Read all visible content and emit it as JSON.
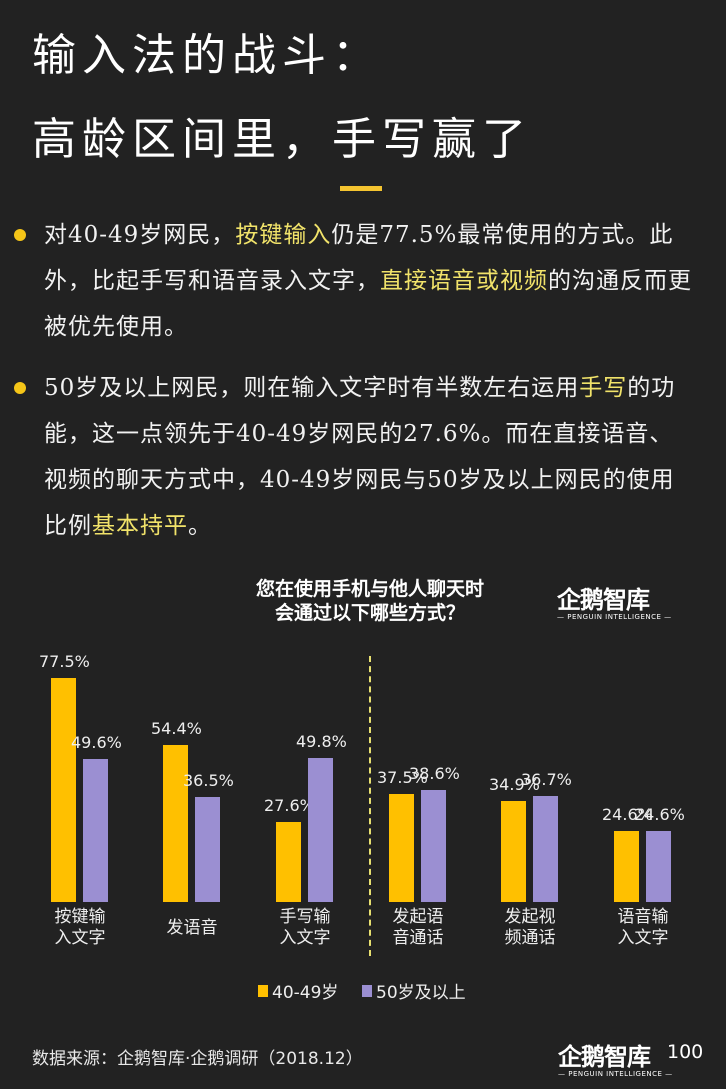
{
  "title": {
    "line1": "输入法的战斗：",
    "line2": "高龄区间里，手写赢了"
  },
  "bullets": [
    {
      "parts": [
        {
          "text": "对40-49岁网民，",
          "highlight": false
        },
        {
          "text": "按键输入",
          "highlight": true
        },
        {
          "text": "仍是77.5%最常使用的方式。此外，比起手写和语音录入文字，",
          "highlight": false
        },
        {
          "text": "直接语音或视频",
          "highlight": true
        },
        {
          "text": "的沟通反而更被优先使用。",
          "highlight": false
        }
      ]
    },
    {
      "parts": [
        {
          "text": "50岁及以上网民，则在输入文字时有半数左右运用",
          "highlight": false
        },
        {
          "text": "手写",
          "highlight": true
        },
        {
          "text": "的功能，这一点领先于40-49岁网民的27.6%。而在直接语音、视频的聊天方式中，40-49岁网民与50岁及以上网民的使用比例",
          "highlight": false
        },
        {
          "text": "基本持平",
          "highlight": true
        },
        {
          "text": "。",
          "highlight": false
        }
      ]
    }
  ],
  "chart_title": {
    "line1": "您在使用手机与他人聊天时",
    "line2": "会通过以下哪些方式？"
  },
  "logo": {
    "name": "企鹅智库",
    "sub": "— PENGUIN INTELLIGENCE —"
  },
  "colors": {
    "series1": "#ffc000",
    "series2": "#9b8fd2",
    "accent": "#f4c430",
    "highlight_text": "#f1e36a",
    "background": "#222222"
  },
  "chart_data": {
    "type": "bar",
    "title": "您在使用手机与他人聊天时会通过以下哪些方式？",
    "categories": [
      "按键输入文字",
      "发语音",
      "手写输入文字",
      "发起语音通话",
      "发起视频通话",
      "语音输入文字"
    ],
    "category_lines": [
      [
        "按键输",
        "入文字"
      ],
      [
        "发语音"
      ],
      [
        "手写输",
        "入文字"
      ],
      [
        "发起语",
        "音通话"
      ],
      [
        "发起视",
        "频通话"
      ],
      [
        "语音输",
        "入文字"
      ]
    ],
    "series": [
      {
        "name": "40-49岁",
        "values": [
          77.5,
          54.4,
          27.6,
          37.5,
          34.9,
          24.6
        ]
      },
      {
        "name": "50岁及以上",
        "values": [
          49.6,
          36.5,
          49.8,
          38.6,
          36.7,
          24.6
        ]
      }
    ],
    "unit": "%",
    "xlabel": "",
    "ylabel": "",
    "ylim": [
      0,
      80
    ],
    "grid": false,
    "legend_position": "bottom",
    "annotations": [
      "dashed vertical divider between 手写输入文字 and 发起语音通话"
    ]
  },
  "legend": [
    {
      "label": "40-49岁"
    },
    {
      "label": "50岁及以上"
    }
  ],
  "footer": {
    "source": "数据来源：企鹅智库·企鹅调研（2018.12）",
    "page_number": "100"
  }
}
